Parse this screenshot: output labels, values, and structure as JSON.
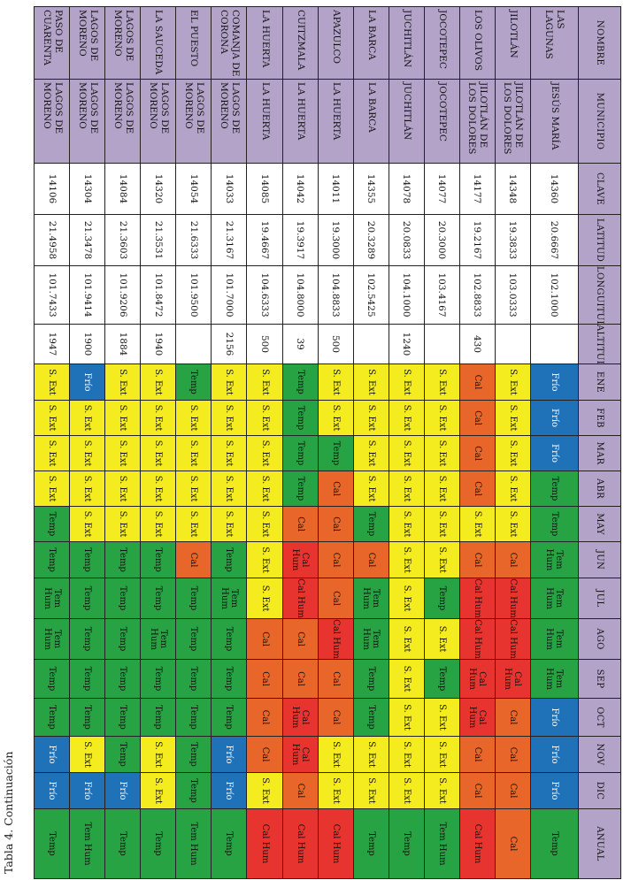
{
  "caption": "Tabla 4. Continuación",
  "headers": [
    "NOMBRE",
    "MUNICIPIO",
    "CLAVE",
    "LATITUD",
    "LONGUITUD",
    "ALTITUD",
    "ENE",
    "FEB",
    "MAR",
    "ABR",
    "MAY",
    "JUN",
    "JUL",
    "AGO",
    "SEP",
    "OCT",
    "NOV",
    "DIC",
    "ANUAL"
  ],
  "labels": {
    "frio": "Frío",
    "sext": "S. Ext",
    "cal": "Cal",
    "calh": "Cal Hum",
    "temp": "Temp",
    "tem": "Tem Hum"
  },
  "rows": [
    {
      "nombre": "LAS LAGUNAS",
      "municipio": "JESÚS MARÍA",
      "clave": "14360",
      "lat": "20.6667",
      "lon": "102.1000",
      "alt": "",
      "months": [
        "frio",
        "frio",
        "frio",
        "temp",
        "temp",
        "tem",
        "tem",
        "tem",
        "tem",
        "frio",
        "frio",
        "frio",
        "temp"
      ]
    },
    {
      "nombre": "JILOTLÁN",
      "municipio": "JILOTLÁN DE LOS DOLORES",
      "clave": "14348",
      "lat": "19.3833",
      "lon": "103.0333",
      "alt": "",
      "months": [
        "sext",
        "sext",
        "sext",
        "sext",
        "sext",
        "cal",
        "calh",
        "calh",
        "calh",
        "cal",
        "cal",
        "cal",
        "cal"
      ]
    },
    {
      "nombre": "LOS OLIVOS",
      "municipio": "JILOTLÁN DE LOS DOLORES",
      "clave": "14177",
      "lat": "19.2167",
      "lon": "102.8833",
      "alt": "430",
      "months": [
        "cal",
        "cal",
        "cal",
        "cal",
        "sext",
        "cal",
        "calh",
        "calh",
        "calh",
        "calh",
        "cal",
        "cal",
        "calh"
      ]
    },
    {
      "nombre": "JOCOTEPEC",
      "municipio": "JOCOTEPEC",
      "clave": "14077",
      "lat": "20.3000",
      "lon": "103.4167",
      "alt": "",
      "months": [
        "sext",
        "sext",
        "sext",
        "sext",
        "sext",
        "sext",
        "temp",
        "sext",
        "temp",
        "sext",
        "sext",
        "sext",
        "tem"
      ]
    },
    {
      "nombre": "JUCHITLÁN",
      "municipio": "JUCHITLÁN",
      "clave": "14078",
      "lat": "20.0833",
      "lon": "104.1000",
      "alt": "1240",
      "months": [
        "sext",
        "sext",
        "sext",
        "sext",
        "sext",
        "sext",
        "sext",
        "sext",
        "sext",
        "sext",
        "sext",
        "sext",
        "temp"
      ]
    },
    {
      "nombre": "LA BARCA",
      "municipio": "LA BARCA",
      "clave": "14355",
      "lat": "20.3289",
      "lon": "102.5425",
      "alt": "",
      "months": [
        "sext",
        "sext",
        "sext",
        "sext",
        "temp",
        "cal",
        "tem",
        "tem",
        "temp",
        "temp",
        "sext",
        "sext",
        "temp"
      ]
    },
    {
      "nombre": "APAZULCO",
      "municipio": "LA HUERTA",
      "clave": "14011",
      "lat": "19.3000",
      "lon": "104.8833",
      "alt": "500",
      "months": [
        "sext",
        "sext",
        "temp",
        "cal",
        "cal",
        "cal",
        "cal",
        "calh",
        "cal",
        "cal",
        "sext",
        "sext",
        "calh"
      ]
    },
    {
      "nombre": "CUITZMALA",
      "municipio": "LA HUERTA",
      "clave": "14042",
      "lat": "19.3917",
      "lon": "104.8000",
      "alt": "39",
      "months": [
        "temp",
        "temp",
        "temp",
        "temp",
        "cal",
        "calh",
        "calh",
        "cal",
        "cal",
        "calh",
        "calh",
        "cal",
        "calh"
      ]
    },
    {
      "nombre": "LA HUERTA",
      "municipio": "LA HUERTA",
      "clave": "14085",
      "lat": "19.4667",
      "lon": "104.6333",
      "alt": "500",
      "months": [
        "sext",
        "sext",
        "sext",
        "sext",
        "sext",
        "sext",
        "sext",
        "cal",
        "cal",
        "cal",
        "cal",
        "sext",
        "calh"
      ]
    },
    {
      "nombre": "COMANJA DE CORONA",
      "municipio": "LAGOS DE MORENO",
      "clave": "14033",
      "lat": "21.3167",
      "lon": "101.7000",
      "alt": "2156",
      "months": [
        "sext",
        "sext",
        "sext",
        "sext",
        "sext",
        "temp",
        "tem",
        "temp",
        "temp",
        "temp",
        "frio",
        "frio",
        "temp"
      ]
    },
    {
      "nombre": "EL PUESTO",
      "municipio": "LAGOS DE MORENO",
      "clave": "14054",
      "lat": "21.6333",
      "lon": "101.9500",
      "alt": "",
      "months": [
        "temp",
        "sext",
        "sext",
        "sext",
        "sext",
        "cal",
        "temp",
        "temp",
        "temp",
        "temp",
        "temp",
        "temp",
        "tem"
      ]
    },
    {
      "nombre": "LA SAUCEDA",
      "municipio": "LAGOS DE MORENO",
      "clave": "14320",
      "lat": "21.3531",
      "lon": "101.8472",
      "alt": "1940",
      "months": [
        "sext",
        "sext",
        "sext",
        "sext",
        "sext",
        "temp",
        "temp",
        "tem",
        "temp",
        "temp",
        "sext",
        "sext",
        "temp"
      ]
    },
    {
      "nombre": "LAGOS DE MORENO",
      "municipio": "LAGOS DE MORENO",
      "clave": "14084",
      "lat": "21.3603",
      "lon": "101.9206",
      "alt": "1884",
      "months": [
        "sext",
        "sext",
        "sext",
        "sext",
        "sext",
        "temp",
        "temp",
        "temp",
        "temp",
        "temp",
        "temp",
        "frio",
        "temp"
      ]
    },
    {
      "nombre": "LAGOS DE MORENO",
      "municipio": "LAGOS DE MORENO",
      "clave": "14304",
      "lat": "21.3478",
      "lon": "101.9414",
      "alt": "1900",
      "months": [
        "frio",
        "sext",
        "sext",
        "sext",
        "sext",
        "temp",
        "temp",
        "temp",
        "temp",
        "temp",
        "sext",
        "frio",
        "tem"
      ]
    },
    {
      "nombre": "PASO DE CUARENTA",
      "municipio": "LAGOS DE MORENO",
      "clave": "14106",
      "lat": "21.4958",
      "lon": "101.7433",
      "alt": "1947",
      "months": [
        "sext",
        "sext",
        "sext",
        "sext",
        "temp",
        "temp",
        "tem",
        "tem",
        "temp",
        "temp",
        "frio",
        "frio",
        "temp"
      ]
    }
  ]
}
